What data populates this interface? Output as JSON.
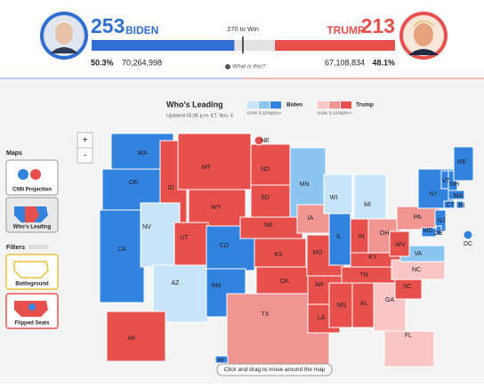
{
  "header": {
    "biden_ev": 253,
    "biden_name": "BIDEN",
    "win_label": "270 to Win",
    "trump_name": "TRUMP",
    "trump_ev": 213,
    "biden_pct": "50.3%",
    "biden_votes": "70,264,998",
    "info": "What is this?",
    "trump_votes": "67,108,834",
    "trump_pct": "48.1%",
    "biden_color": "#2f6fd3",
    "trump_color": "#e8504d"
  },
  "sidebar": {
    "maps_title": "Maps",
    "maps": [
      "CNN Projection",
      "Who's Leading"
    ],
    "filters_title": "Filters",
    "filters": [
      "Battleground",
      "Flipped Seats"
    ],
    "zoom": [
      "+",
      "-"
    ]
  },
  "legend": {
    "title": "Who's Leading",
    "updated": "Updated 05:06 p.m. ET, Nov. 4",
    "biden": "Biden",
    "trump": "Trump",
    "bands": [
      "0-5%",
      "5-10%",
      "10%+"
    ],
    "biden_colors": [
      "#c8e4f8",
      "#8cc5f0",
      "#3283e0"
    ],
    "trump_colors": [
      "#f8c6c5",
      "#f19593",
      "#e8504d"
    ]
  },
  "states": [
    {
      "label": "WA",
      "color": "#3283e0"
    },
    {
      "label": "OR",
      "color": "#3283e0"
    },
    {
      "label": "CA",
      "color": "#3283e0"
    },
    {
      "label": "ID",
      "color": "#e8504d"
    },
    {
      "label": "MT",
      "color": "#e8504d"
    },
    {
      "label": "WY",
      "color": "#e8504d"
    },
    {
      "label": "NV",
      "color": "#c8e4f8"
    },
    {
      "label": "UT",
      "color": "#e8504d"
    },
    {
      "label": "AZ",
      "color": "#c8e4f8"
    },
    {
      "label": "CO",
      "color": "#3283e0"
    },
    {
      "label": "NM",
      "color": "#3283e0"
    },
    {
      "label": "ND",
      "color": "#e8504d"
    },
    {
      "label": "SD",
      "color": "#e8504d"
    },
    {
      "label": "NE",
      "color": "#e8504d"
    },
    {
      "label": "KS",
      "color": "#e8504d"
    },
    {
      "label": "OK",
      "color": "#e8504d"
    },
    {
      "label": "TX",
      "color": "#f19593"
    },
    {
      "label": "MN",
      "color": "#8cc5f0"
    },
    {
      "label": "IA",
      "color": "#f19593"
    },
    {
      "label": "MO",
      "color": "#e8504d"
    },
    {
      "label": "AR",
      "color": "#e8504d"
    },
    {
      "label": "LA",
      "color": "#e8504d"
    },
    {
      "label": "WI",
      "color": "#c8e4f8"
    },
    {
      "label": "IL",
      "color": "#3283e0"
    },
    {
      "label": "MI",
      "color": "#c8e4f8"
    },
    {
      "label": "IN",
      "color": "#e8504d"
    },
    {
      "label": "OH",
      "color": "#f19593"
    },
    {
      "label": "KY",
      "color": "#e8504d"
    },
    {
      "label": "TN",
      "color": "#e8504d"
    },
    {
      "label": "MS",
      "color": "#e8504d"
    },
    {
      "label": "AL",
      "color": "#e8504d"
    },
    {
      "label": "GA",
      "color": "#f8c6c5"
    },
    {
      "label": "FL",
      "color": "#f8c6c5"
    },
    {
      "label": "SC",
      "color": "#e8504d"
    },
    {
      "label": "NC",
      "color": "#f8c6c5"
    },
    {
      "label": "VA",
      "color": "#8cc5f0"
    },
    {
      "label": "WV",
      "color": "#e8504d"
    },
    {
      "label": "PA",
      "color": "#f19593"
    },
    {
      "label": "NY",
      "color": "#3283e0"
    },
    {
      "label": "NJ",
      "color": "#3283e0"
    },
    {
      "label": "DE",
      "color": "#3283e0"
    },
    {
      "label": "MD",
      "color": "#3283e0"
    },
    {
      "label": "VT",
      "color": "#3283e0"
    },
    {
      "label": "NH",
      "color": "#3283e0"
    },
    {
      "label": "ME",
      "color": "#3283e0"
    },
    {
      "label": "MA",
      "color": "#3283e0"
    },
    {
      "label": "CT",
      "color": "#3283e0"
    },
    {
      "label": "RI",
      "color": "#3283e0"
    },
    {
      "label": "AK",
      "color": "#e8504d"
    },
    {
      "label": "HI",
      "color": "#3283e0"
    },
    {
      "label": "DC",
      "color": "#3283e0"
    },
    {
      "label": "NE",
      "color": "#e8504d"
    }
  ],
  "hint": "Click and drag to move around the map"
}
